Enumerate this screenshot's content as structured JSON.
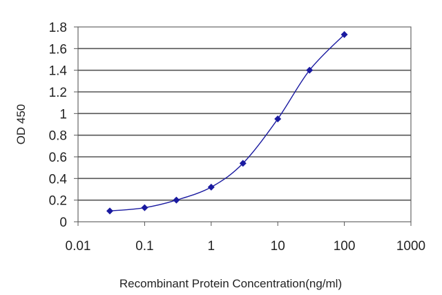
{
  "chart_data": {
    "type": "line",
    "title": "",
    "xlabel": "Recombinant Protein Concentration(ng/ml)",
    "ylabel": "OD 450",
    "x_scale": "log",
    "xlim": [
      0.01,
      1000
    ],
    "ylim": [
      0,
      1.8
    ],
    "x_ticks": [
      "0.01",
      "0.1",
      "1",
      "10",
      "100",
      "1000"
    ],
    "y_ticks": [
      "0",
      "0.2",
      "0.4",
      "0.6",
      "0.8",
      "1",
      "1.2",
      "1.4",
      "1.6",
      "1.8"
    ],
    "grid": "horizontal",
    "legend": "none",
    "series": [
      {
        "color": "#1a1aa0",
        "marker": "diamond",
        "x": [
          0.03,
          0.1,
          0.3,
          1,
          3,
          10,
          30,
          100
        ],
        "y": [
          0.1,
          0.13,
          0.2,
          0.32,
          0.54,
          0.95,
          1.4,
          1.73
        ]
      }
    ]
  }
}
